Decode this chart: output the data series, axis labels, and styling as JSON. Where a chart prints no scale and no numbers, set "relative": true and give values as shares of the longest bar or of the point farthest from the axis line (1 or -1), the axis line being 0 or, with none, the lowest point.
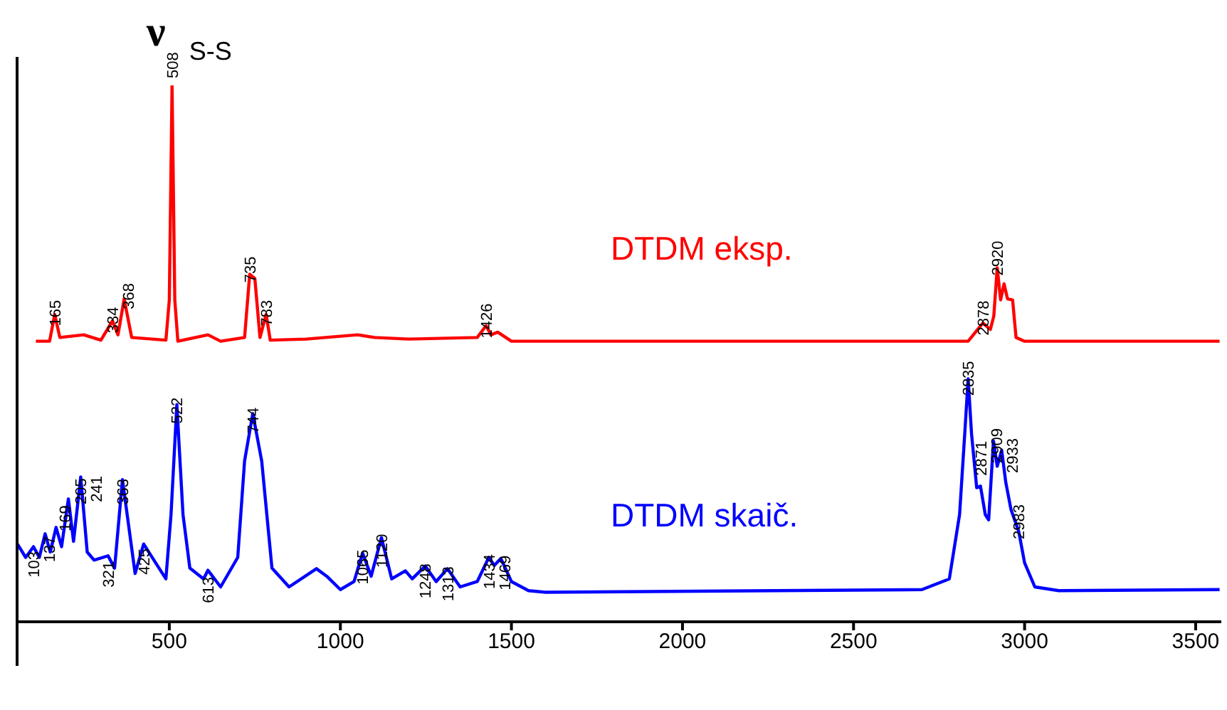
{
  "chart_data": {
    "type": "line",
    "relative": true,
    "xlim": [
      55,
      3575
    ],
    "xticks": [
      500,
      1000,
      1500,
      2000,
      2500,
      3000,
      3500
    ],
    "series": [
      {
        "name": "DTDM eksp.",
        "color": "#ff0000",
        "x": [
          110,
          150,
          165,
          180,
          250,
          300,
          334,
          350,
          368,
          390,
          490,
          500,
          508,
          516,
          525,
          613,
          650,
          720,
          735,
          750,
          765,
          783,
          795,
          900,
          1050,
          1100,
          1200,
          1400,
          1426,
          1440,
          1460,
          1500,
          2835,
          2878,
          2900,
          2910,
          2920,
          2930,
          2940,
          2950,
          2965,
          2975,
          3000,
          3570
        ],
        "values": [
          0.523,
          0.523,
          0.573,
          0.53,
          0.535,
          0.525,
          0.561,
          0.535,
          0.602,
          0.53,
          0.525,
          0.6,
          1.0,
          0.6,
          0.523,
          0.535,
          0.523,
          0.53,
          0.648,
          0.64,
          0.53,
          0.573,
          0.525,
          0.527,
          0.535,
          0.53,
          0.527,
          0.53,
          0.552,
          0.535,
          0.54,
          0.523,
          0.523,
          0.557,
          0.545,
          0.57,
          0.66,
          0.6,
          0.63,
          0.602,
          0.6,
          0.53,
          0.523,
          0.523
        ]
      },
      {
        "name": "DTDM skaič.",
        "color": "#0000ff",
        "x": [
          56,
          80,
          103,
          120,
          137,
          152,
          169,
          185,
          205,
          220,
          241,
          260,
          280,
          321,
          340,
          363,
          400,
          425,
          460,
          490,
          505,
          522,
          540,
          560,
          600,
          613,
          650,
          700,
          720,
          744,
          770,
          800,
          850,
          930,
          960,
          1000,
          1040,
          1065,
          1090,
          1120,
          1150,
          1190,
          1210,
          1248,
          1280,
          1313,
          1350,
          1400,
          1434,
          1450,
          1469,
          1500,
          1550,
          1600,
          2700,
          2780,
          2810,
          2825,
          2835,
          2845,
          2860,
          2871,
          2885,
          2895,
          2909,
          2920,
          2933,
          2945,
          2960,
          2983,
          3000,
          3030,
          3100,
          3570
        ],
        "values": [
          0.145,
          0.12,
          0.14,
          0.12,
          0.164,
          0.13,
          0.176,
          0.14,
          0.229,
          0.15,
          0.27,
          0.13,
          0.115,
          0.123,
          0.1,
          0.265,
          0.09,
          0.145,
          0.11,
          0.08,
          0.2,
          0.405,
          0.2,
          0.1,
          0.08,
          0.096,
          0.065,
          0.12,
          0.3,
          0.388,
          0.3,
          0.1,
          0.065,
          0.099,
          0.085,
          0.06,
          0.075,
          0.128,
          0.085,
          0.157,
          0.08,
          0.095,
          0.08,
          0.104,
          0.075,
          0.099,
          0.065,
          0.075,
          0.12,
          0.105,
          0.118,
          0.075,
          0.058,
          0.055,
          0.06,
          0.08,
          0.2,
          0.35,
          0.453,
          0.35,
          0.25,
          0.253,
          0.2,
          0.19,
          0.337,
          0.29,
          0.32,
          0.26,
          0.21,
          0.168,
          0.11,
          0.065,
          0.058,
          0.06
        ]
      }
    ],
    "annotations": [
      {
        "text": "ν$_{S-S}$",
        "x": 508,
        "y": 1.0
      },
      {
        "text": "165",
        "x": 165,
        "y": 0.573
      },
      {
        "text": "334",
        "x": 334,
        "y": 0.561
      },
      {
        "text": "368",
        "x": 368,
        "y": 0.602
      },
      {
        "text": "508",
        "x": 508,
        "y": 1.0
      },
      {
        "text": "735",
        "x": 735,
        "y": 0.648
      },
      {
        "text": "783",
        "x": 783,
        "y": 0.573
      },
      {
        "text": "1426",
        "x": 1426,
        "y": 0.552
      },
      {
        "text": "2878",
        "x": 2878,
        "y": 0.557
      },
      {
        "text": "2920",
        "x": 2920,
        "y": 0.66
      },
      {
        "text": "103",
        "x": 103,
        "y": 0.14
      },
      {
        "text": "137",
        "x": 137,
        "y": 0.164
      },
      {
        "text": "169",
        "x": 169,
        "y": 0.176
      },
      {
        "text": "205",
        "x": 205,
        "y": 0.229
      },
      {
        "text": "241",
        "x": 241,
        "y": 0.27
      },
      {
        "text": "321",
        "x": 321,
        "y": 0.123
      },
      {
        "text": "363",
        "x": 363,
        "y": 0.265
      },
      {
        "text": "425",
        "x": 425,
        "y": 0.145
      },
      {
        "text": "522",
        "x": 522,
        "y": 0.405
      },
      {
        "text": "613",
        "x": 613,
        "y": 0.096
      },
      {
        "text": "744",
        "x": 744,
        "y": 0.388
      },
      {
        "text": "1065",
        "x": 1065,
        "y": 0.128
      },
      {
        "text": "1120",
        "x": 1120,
        "y": 0.157
      },
      {
        "text": "1248",
        "x": 1248,
        "y": 0.104
      },
      {
        "text": "1313",
        "x": 1313,
        "y": 0.099
      },
      {
        "text": "1434",
        "x": 1434,
        "y": 0.12
      },
      {
        "text": "1469",
        "x": 1469,
        "y": 0.118
      },
      {
        "text": "2835",
        "x": 2835,
        "y": 0.453
      },
      {
        "text": "2871",
        "x": 2871,
        "y": 0.253
      },
      {
        "text": "2909",
        "x": 2909,
        "y": 0.337
      },
      {
        "text": "2933",
        "x": 2933,
        "y": 0.32
      },
      {
        "text": "2983",
        "x": 2983,
        "y": 0.168
      }
    ]
  }
}
